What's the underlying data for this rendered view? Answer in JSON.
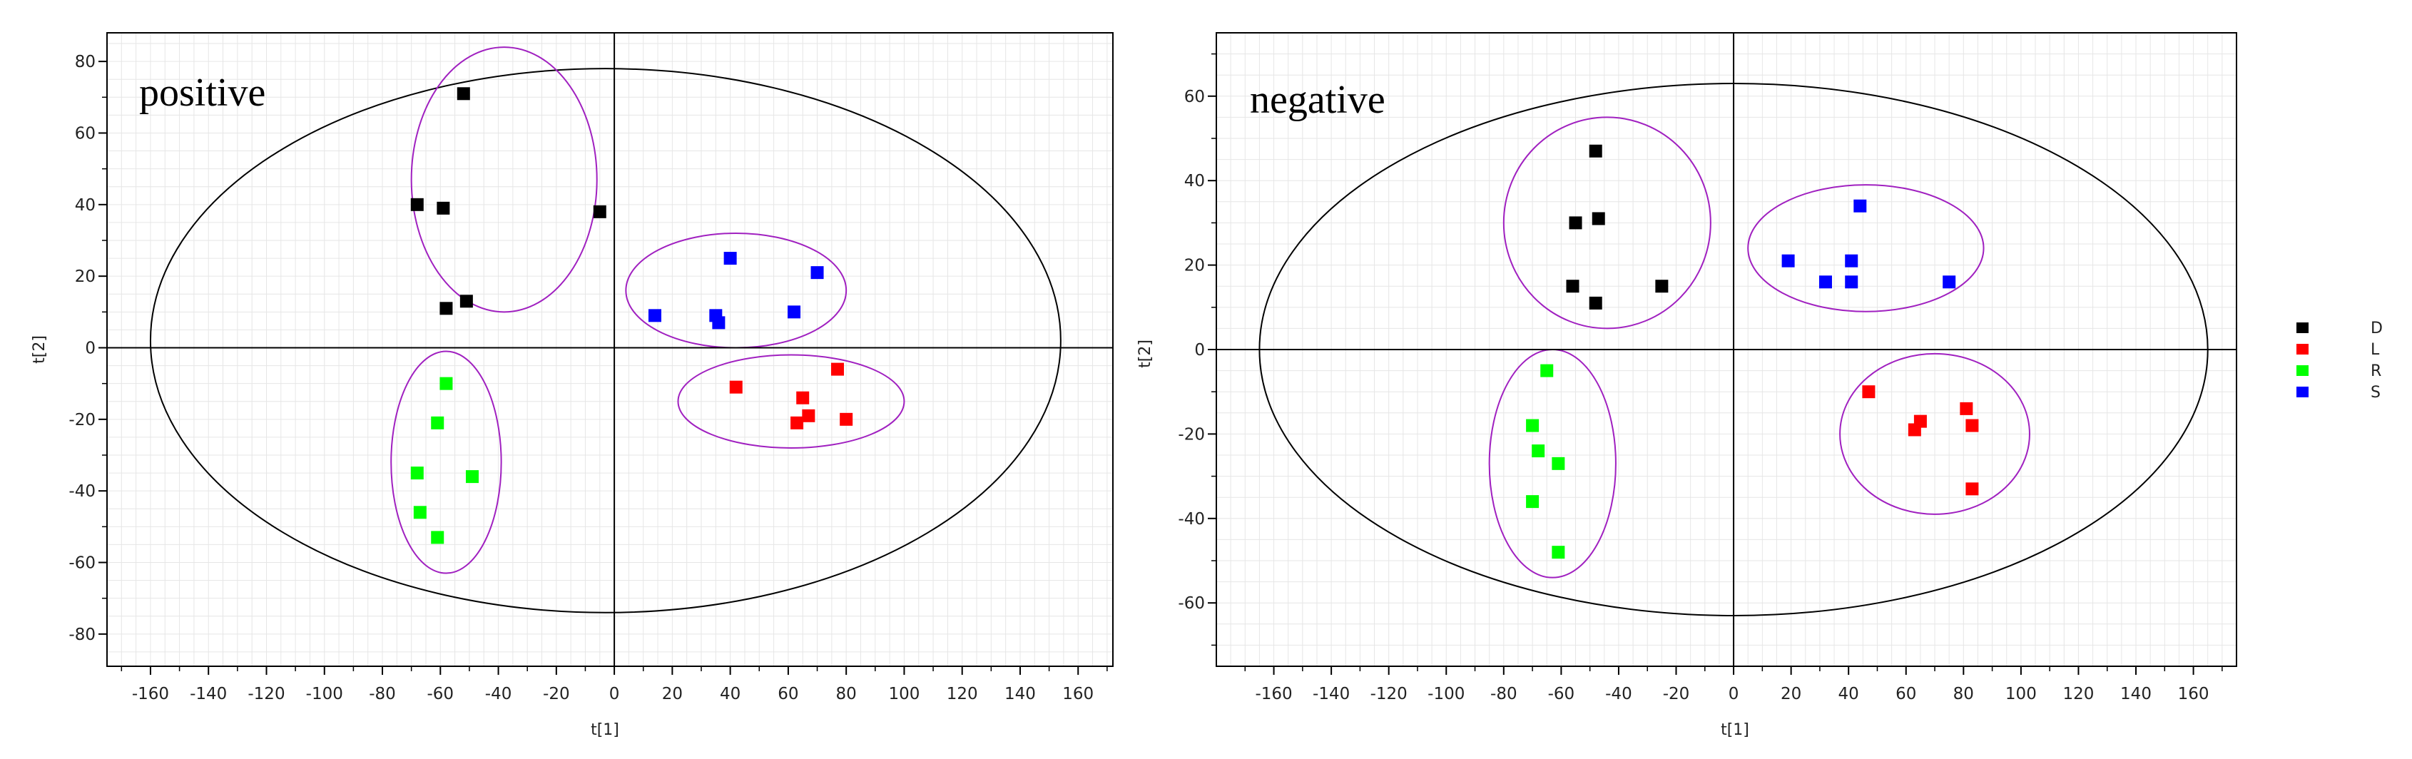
{
  "legend": [
    {
      "label": "D",
      "color": "#000000"
    },
    {
      "label": "L",
      "color": "#ff0000"
    },
    {
      "label": "R",
      "color": "#00ff00"
    },
    {
      "label": "S",
      "color": "#0000ff"
    }
  ],
  "chart_data": [
    {
      "type": "scatter",
      "title": "positive",
      "xlabel": "t[1]",
      "ylabel": "t[2]",
      "xlim": [
        -175,
        172
      ],
      "ylim": [
        -89,
        88
      ],
      "xticks": [
        -160,
        -140,
        -120,
        -100,
        -80,
        -60,
        -40,
        -20,
        0,
        20,
        40,
        60,
        80,
        100,
        120,
        140,
        160
      ],
      "yticks": [
        -80,
        -60,
        -40,
        -20,
        0,
        20,
        40,
        60,
        80
      ],
      "grid": true,
      "hotelling_ellipse": {
        "cx": -3,
        "cy": 2,
        "rx": 157,
        "ry": 76
      },
      "group_ellipses": [
        {
          "group": "D",
          "cx": -38,
          "cy": 47,
          "rx": 32,
          "ry": 37
        },
        {
          "group": "S",
          "cx": 42,
          "cy": 16,
          "rx": 38,
          "ry": 16
        },
        {
          "group": "L",
          "cx": 61,
          "cy": -15,
          "rx": 39,
          "ry": 13
        },
        {
          "group": "R",
          "cx": -58,
          "cy": -32,
          "rx": 19,
          "ry": 31
        }
      ],
      "series": [
        {
          "name": "D",
          "color": "#000000",
          "points": [
            [
              -52,
              71
            ],
            [
              -68,
              40
            ],
            [
              -59,
              39
            ],
            [
              -5,
              38
            ],
            [
              -51,
              13
            ],
            [
              -58,
              11
            ]
          ]
        },
        {
          "name": "L",
          "color": "#ff0000",
          "points": [
            [
              42,
              -11
            ],
            [
              77,
              -6
            ],
            [
              65,
              -14
            ],
            [
              67,
              -19
            ],
            [
              63,
              -21
            ],
            [
              80,
              -20
            ]
          ]
        },
        {
          "name": "R",
          "color": "#00ff00",
          "points": [
            [
              -58,
              -10
            ],
            [
              -61,
              -21
            ],
            [
              -68,
              -35
            ],
            [
              -49,
              -36
            ],
            [
              -67,
              -46
            ],
            [
              -61,
              -53
            ]
          ]
        },
        {
          "name": "S",
          "color": "#0000ff",
          "points": [
            [
              40,
              25
            ],
            [
              70,
              21
            ],
            [
              14,
              9
            ],
            [
              35,
              9
            ],
            [
              36,
              7
            ],
            [
              62,
              10
            ]
          ]
        }
      ]
    },
    {
      "type": "scatter",
      "title": "negative",
      "xlabel": "t[1]",
      "ylabel": "t[2]",
      "xlim": [
        -180,
        175
      ],
      "ylim": [
        -75,
        75
      ],
      "xticks": [
        -160,
        -140,
        -120,
        -100,
        -80,
        -60,
        -40,
        -20,
        0,
        20,
        40,
        60,
        80,
        100,
        120,
        140,
        160
      ],
      "yticks": [
        -60,
        -40,
        -20,
        0,
        20,
        40,
        60
      ],
      "grid": true,
      "hotelling_ellipse": {
        "cx": 0,
        "cy": 0,
        "rx": 165,
        "ry": 63
      },
      "group_ellipses": [
        {
          "group": "D",
          "cx": -44,
          "cy": 30,
          "rx": 36,
          "ry": 25
        },
        {
          "group": "S",
          "cx": 46,
          "cy": 24,
          "rx": 41,
          "ry": 15
        },
        {
          "group": "L",
          "cx": 70,
          "cy": -20,
          "rx": 33,
          "ry": 19
        },
        {
          "group": "R",
          "cx": -63,
          "cy": -27,
          "rx": 22,
          "ry": 27
        }
      ],
      "series": [
        {
          "name": "D",
          "color": "#000000",
          "points": [
            [
              -48,
              47
            ],
            [
              -47,
              31
            ],
            [
              -55,
              30
            ],
            [
              -56,
              15
            ],
            [
              -25,
              15
            ],
            [
              -48,
              11
            ]
          ]
        },
        {
          "name": "L",
          "color": "#ff0000",
          "points": [
            [
              47,
              -10
            ],
            [
              65,
              -17
            ],
            [
              81,
              -14
            ],
            [
              83,
              -18
            ],
            [
              63,
              -19
            ],
            [
              83,
              -33
            ]
          ]
        },
        {
          "name": "R",
          "color": "#00ff00",
          "points": [
            [
              -65,
              -5
            ],
            [
              -70,
              -18
            ],
            [
              -68,
              -24
            ],
            [
              -61,
              -27
            ],
            [
              -70,
              -36
            ],
            [
              -61,
              -48
            ]
          ]
        },
        {
          "name": "S",
          "color": "#0000ff",
          "points": [
            [
              44,
              34
            ],
            [
              19,
              21
            ],
            [
              41,
              21
            ],
            [
              32,
              16
            ],
            [
              41,
              16
            ],
            [
              75,
              16
            ]
          ]
        }
      ]
    }
  ]
}
